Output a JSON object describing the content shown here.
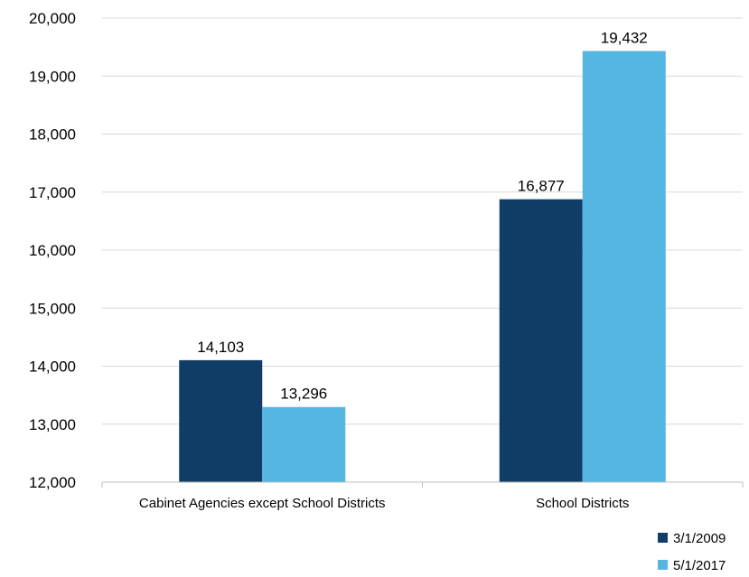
{
  "chart_data": {
    "type": "bar",
    "categories": [
      "Cabinet Agencies except School Districts",
      "School Districts"
    ],
    "series": [
      {
        "name": "3/1/2009",
        "values": [
          14103,
          16877
        ],
        "color": "#0f3d66"
      },
      {
        "name": "5/1/2017",
        "values": [
          13296,
          19432
        ],
        "color": "#55b6e1"
      }
    ],
    "data_labels": [
      [
        "14,103",
        "16,877"
      ],
      [
        "13,296",
        "19,432"
      ]
    ],
    "yticks": [
      "12,000",
      "13,000",
      "14,000",
      "15,000",
      "16,000",
      "17,000",
      "18,000",
      "19,000",
      "20,000"
    ],
    "ylim": [
      12000,
      20000
    ],
    "grid": true,
    "legend_position": "bottom-right"
  }
}
